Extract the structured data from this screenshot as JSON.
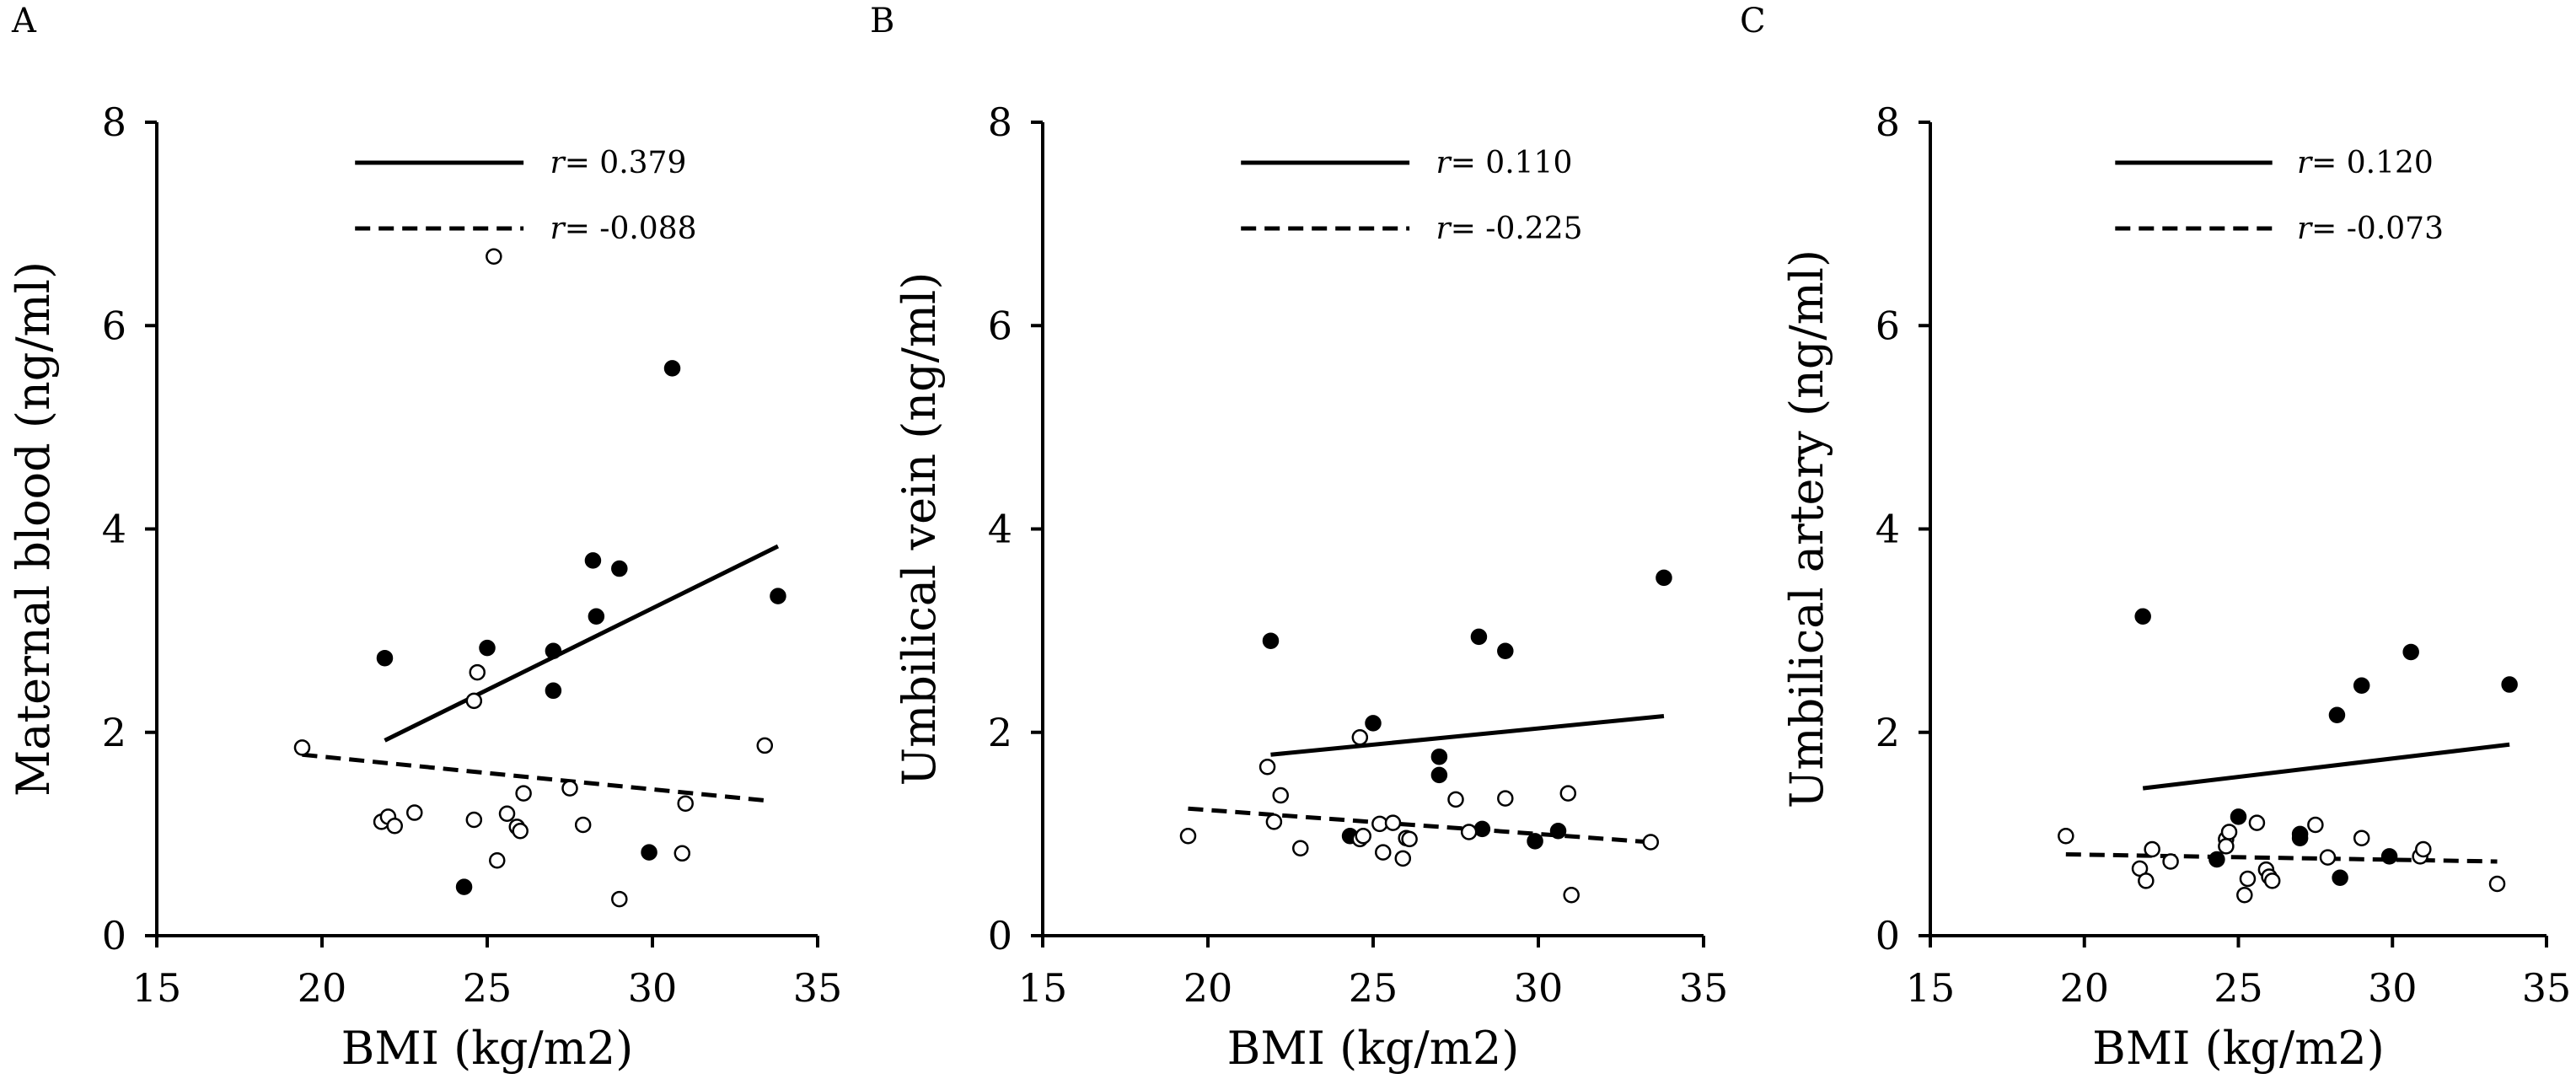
{
  "figure": {
    "panels": [
      "A",
      "B",
      "C"
    ]
  },
  "chart_data": [
    {
      "type": "scatter",
      "panel": "A",
      "title": "",
      "xlabel": "BMI (kg/m2)",
      "ylabel": "Maternal blood (ng/ml)",
      "xlim": [
        15,
        35
      ],
      "ylim": [
        0,
        8
      ],
      "xticks": [
        "15",
        "20",
        "25",
        "30",
        "35"
      ],
      "yticks": [
        "0",
        "2",
        "4",
        "6",
        "8"
      ],
      "grid": false,
      "legend": [
        {
          "style": "solid",
          "r_symbol": "r",
          "text": "= 0.379"
        },
        {
          "style": "dashed",
          "r_symbol": "r",
          "text": "= -0.088"
        }
      ],
      "series": [
        {
          "name": "filled",
          "marker": "filled-circle",
          "points": [
            [
              21.9,
              2.73
            ],
            [
              24.3,
              0.48
            ],
            [
              25.0,
              2.83
            ],
            [
              27.0,
              2.8
            ],
            [
              27.0,
              2.41
            ],
            [
              28.2,
              3.69
            ],
            [
              28.3,
              3.14
            ],
            [
              29.0,
              3.61
            ],
            [
              29.9,
              0.82
            ],
            [
              30.6,
              5.58
            ],
            [
              33.8,
              3.34
            ]
          ]
        },
        {
          "name": "open",
          "marker": "open-circle",
          "points": [
            [
              19.4,
              1.85
            ],
            [
              21.8,
              1.12
            ],
            [
              22.0,
              1.17
            ],
            [
              22.2,
              1.08
            ],
            [
              22.8,
              1.21
            ],
            [
              24.6,
              2.31
            ],
            [
              24.6,
              1.14
            ],
            [
              24.7,
              2.59
            ],
            [
              25.2,
              6.68
            ],
            [
              25.3,
              0.74
            ],
            [
              25.6,
              1.2
            ],
            [
              25.9,
              1.07
            ],
            [
              26.0,
              1.03
            ],
            [
              26.1,
              1.4
            ],
            [
              27.5,
              1.45
            ],
            [
              27.9,
              1.09
            ],
            [
              29.0,
              0.36
            ],
            [
              30.9,
              0.81
            ],
            [
              31.0,
              1.3
            ],
            [
              33.4,
              1.87
            ]
          ]
        }
      ],
      "trendlines": [
        {
          "style": "solid",
          "x": [
            21.9,
            33.8
          ],
          "y": [
            1.92,
            3.83
          ]
        },
        {
          "style": "dashed",
          "x": [
            19.4,
            33.4
          ],
          "y": [
            1.78,
            1.33
          ]
        }
      ]
    },
    {
      "type": "scatter",
      "panel": "B",
      "title": "",
      "xlabel": "BMI (kg/m2)",
      "ylabel": "Umbilical vein (ng/ml)",
      "xlim": [
        15,
        35
      ],
      "ylim": [
        0,
        8
      ],
      "xticks": [
        "15",
        "20",
        "25",
        "30",
        "35"
      ],
      "yticks": [
        "0",
        "2",
        "4",
        "6",
        "8"
      ],
      "grid": false,
      "legend": [
        {
          "style": "solid",
          "r_symbol": "r",
          "text": "= 0.110"
        },
        {
          "style": "dashed",
          "r_symbol": "r",
          "text": "= -0.225"
        }
      ],
      "series": [
        {
          "name": "filled",
          "marker": "filled-circle",
          "points": [
            [
              21.9,
              2.9
            ],
            [
              24.3,
              0.98
            ],
            [
              25.0,
              2.09
            ],
            [
              27.0,
              1.76
            ],
            [
              27.0,
              1.58
            ],
            [
              28.2,
              2.94
            ],
            [
              28.3,
              1.05
            ],
            [
              29.0,
              2.8
            ],
            [
              29.9,
              0.93
            ],
            [
              30.6,
              1.03
            ],
            [
              33.8,
              3.52
            ]
          ]
        },
        {
          "name": "open",
          "marker": "open-circle",
          "points": [
            [
              19.4,
              0.98
            ],
            [
              21.8,
              1.66
            ],
            [
              22.0,
              1.12
            ],
            [
              22.2,
              1.38
            ],
            [
              22.8,
              0.86
            ],
            [
              24.6,
              1.95
            ],
            [
              24.6,
              0.95
            ],
            [
              24.7,
              0.98
            ],
            [
              25.2,
              1.1
            ],
            [
              25.3,
              0.82
            ],
            [
              25.6,
              1.11
            ],
            [
              25.9,
              0.76
            ],
            [
              26.0,
              0.96
            ],
            [
              26.1,
              0.95
            ],
            [
              27.5,
              1.34
            ],
            [
              27.9,
              1.02
            ],
            [
              29.0,
              1.35
            ],
            [
              30.9,
              1.4
            ],
            [
              31.0,
              0.4
            ],
            [
              33.4,
              0.92
            ]
          ]
        }
      ],
      "trendlines": [
        {
          "style": "solid",
          "x": [
            21.9,
            33.8
          ],
          "y": [
            1.78,
            2.16
          ]
        },
        {
          "style": "dashed",
          "x": [
            19.4,
            33.4
          ],
          "y": [
            1.25,
            0.92
          ]
        }
      ]
    },
    {
      "type": "scatter",
      "panel": "C",
      "title": "",
      "xlabel": "BMI (kg/m2)",
      "ylabel": "Umbilical artery (ng/ml)",
      "xlim": [
        15,
        35
      ],
      "ylim": [
        0,
        8
      ],
      "xticks": [
        "15",
        "20",
        "25",
        "30",
        "35"
      ],
      "yticks": [
        "0",
        "2",
        "4",
        "6",
        "8"
      ],
      "grid": false,
      "legend": [
        {
          "style": "solid",
          "r_symbol": "r",
          "text": "= 0.120"
        },
        {
          "style": "dashed",
          "r_symbol": "r",
          "text": "= -0.073"
        }
      ],
      "series": [
        {
          "name": "filled",
          "marker": "filled-circle",
          "points": [
            [
              21.9,
              3.14
            ],
            [
              24.3,
              0.75
            ],
            [
              25.0,
              1.17
            ],
            [
              27.0,
              0.96
            ],
            [
              27.0,
              1.0
            ],
            [
              28.2,
              2.17
            ],
            [
              28.3,
              0.57
            ],
            [
              29.0,
              2.46
            ],
            [
              29.9,
              0.78
            ],
            [
              30.6,
              2.79
            ],
            [
              33.8,
              2.47
            ]
          ]
        },
        {
          "name": "open",
          "marker": "open-circle",
          "points": [
            [
              19.4,
              0.98
            ],
            [
              21.8,
              0.66
            ],
            [
              22.0,
              0.54
            ],
            [
              22.2,
              0.85
            ],
            [
              22.8,
              0.73
            ],
            [
              24.6,
              0.95
            ],
            [
              24.6,
              0.88
            ],
            [
              24.7,
              1.02
            ],
            [
              25.2,
              0.4
            ],
            [
              25.3,
              0.56
            ],
            [
              25.6,
              1.11
            ],
            [
              25.9,
              0.65
            ],
            [
              26.0,
              0.58
            ],
            [
              26.1,
              0.54
            ],
            [
              27.5,
              1.09
            ],
            [
              27.9,
              0.77
            ],
            [
              29.0,
              0.96
            ],
            [
              30.9,
              0.78
            ],
            [
              31.0,
              0.85
            ],
            [
              33.4,
              0.51
            ]
          ]
        }
      ],
      "trendlines": [
        {
          "style": "solid",
          "x": [
            21.9,
            33.8
          ],
          "y": [
            1.45,
            1.88
          ]
        },
        {
          "style": "dashed",
          "x": [
            19.4,
            33.4
          ],
          "y": [
            0.8,
            0.73
          ]
        }
      ]
    }
  ]
}
